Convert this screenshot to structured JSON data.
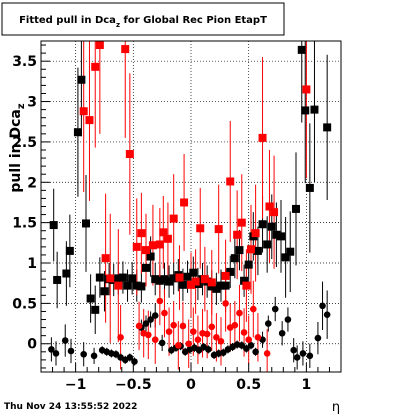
{
  "colors": {
    "series_black": "#000000",
    "series_red": "#ff0000",
    "background": "#ffffff"
  },
  "chart_data": {
    "type": "scatter",
    "title": "Fitted pull in Dca",
    "title_subscript": "z",
    "title_suffix": " for Global Rec Pion EtapT",
    "ylabel": "pull in Dca",
    "ylabel_subscript": "z",
    "xlabel": "η",
    "timestamp": "Thu Nov 24 13:55:52 2022",
    "xlim": [
      -1.3,
      1.3
    ],
    "ylim": [
      -0.35,
      3.75
    ],
    "x_ticks": [
      -1,
      -0.5,
      0,
      0.5,
      1
    ],
    "x_tick_labels": [
      "−1",
      "−0.5",
      "0",
      "0.5",
      "1"
    ],
    "y_ticks": [
      0,
      0.5,
      1,
      1.5,
      2,
      2.5,
      3,
      3.5
    ],
    "y_tick_labels": [
      "0",
      "0.5",
      "1",
      "1.5",
      "2",
      "2.5",
      "3",
      "3.5"
    ],
    "grid": true,
    "series": [
      {
        "color": "#000000",
        "marker": "square",
        "points": [
          {
            "x": -1.19,
            "y": 1.47,
            "err": 0.45
          },
          {
            "x": -1.16,
            "y": 0.79,
            "err": 0.35
          },
          {
            "x": -1.08,
            "y": 0.87,
            "err": 0.4
          },
          {
            "x": -1.05,
            "y": 1.15,
            "err": 0.45
          },
          {
            "x": -0.98,
            "y": 2.62,
            "err": 0.8
          },
          {
            "x": -0.95,
            "y": 3.27,
            "err": 0.7
          },
          {
            "x": -0.91,
            "y": 1.49,
            "err": 0.6
          },
          {
            "x": -0.87,
            "y": 0.56,
            "err": 0.3
          },
          {
            "x": -0.83,
            "y": 0.42,
            "err": 0.3
          },
          {
            "x": -0.79,
            "y": 0.82,
            "err": 0.25
          },
          {
            "x": -0.75,
            "y": 0.65,
            "err": 0.25
          },
          {
            "x": -0.71,
            "y": 0.8,
            "err": 0.2
          },
          {
            "x": -0.67,
            "y": 0.79,
            "err": 0.2
          },
          {
            "x": -0.63,
            "y": 0.81,
            "err": 0.2
          },
          {
            "x": -0.59,
            "y": 0.82,
            "err": 0.2
          },
          {
            "x": -0.55,
            "y": 0.72,
            "err": 0.2
          },
          {
            "x": -0.51,
            "y": 0.81,
            "err": 0.2
          },
          {
            "x": -0.47,
            "y": 0.72,
            "err": 0.2
          },
          {
            "x": -0.43,
            "y": 0.71,
            "err": 0.2
          },
          {
            "x": -0.39,
            "y": 0.94,
            "err": 0.2
          },
          {
            "x": -0.35,
            "y": 1.08,
            "err": 0.25
          },
          {
            "x": -0.31,
            "y": 0.8,
            "err": 0.2
          },
          {
            "x": -0.27,
            "y": 0.78,
            "err": 0.2
          },
          {
            "x": -0.23,
            "y": 0.8,
            "err": 0.2
          },
          {
            "x": -0.19,
            "y": 0.77,
            "err": 0.2
          },
          {
            "x": -0.15,
            "y": 0.81,
            "err": 0.2
          },
          {
            "x": -0.11,
            "y": 0.85,
            "err": 0.2
          },
          {
            "x": -0.07,
            "y": 0.73,
            "err": 0.2
          },
          {
            "x": -0.03,
            "y": 0.83,
            "err": 0.2
          },
          {
            "x": 0.02,
            "y": 0.88,
            "err": 0.2
          },
          {
            "x": 0.06,
            "y": 0.74,
            "err": 0.2
          },
          {
            "x": 0.1,
            "y": 0.8,
            "err": 0.2
          },
          {
            "x": 0.14,
            "y": 0.77,
            "err": 0.2
          },
          {
            "x": 0.18,
            "y": 0.71,
            "err": 0.2
          },
          {
            "x": 0.22,
            "y": 0.68,
            "err": 0.2
          },
          {
            "x": 0.26,
            "y": 0.72,
            "err": 0.2
          },
          {
            "x": 0.3,
            "y": 0.72,
            "err": 0.2
          },
          {
            "x": 0.34,
            "y": 0.89,
            "err": 0.2
          },
          {
            "x": 0.38,
            "y": 1.06,
            "err": 0.25
          },
          {
            "x": 0.42,
            "y": 1.16,
            "err": 0.25
          },
          {
            "x": 0.46,
            "y": 0.78,
            "err": 0.2
          },
          {
            "x": 0.5,
            "y": 0.98,
            "err": 0.25
          },
          {
            "x": 0.54,
            "y": 1.33,
            "err": 0.3
          },
          {
            "x": 0.58,
            "y": 1.15,
            "err": 0.3
          },
          {
            "x": 0.62,
            "y": 1.48,
            "err": 0.35
          },
          {
            "x": 0.66,
            "y": 1.23,
            "err": 0.35
          },
          {
            "x": 0.7,
            "y": 1.45,
            "err": 0.4
          },
          {
            "x": 0.74,
            "y": 1.35,
            "err": 0.4
          },
          {
            "x": 0.78,
            "y": 1.33,
            "err": 0.45
          },
          {
            "x": 0.82,
            "y": 1.07,
            "err": 0.5
          },
          {
            "x": 0.86,
            "y": 1.14,
            "err": 0.5
          },
          {
            "x": 0.91,
            "y": 1.67,
            "err": 0.7
          },
          {
            "x": 0.96,
            "y": 3.64,
            "err": 0.9
          },
          {
            "x": 0.99,
            "y": 2.89,
            "err": 0.9
          },
          {
            "x": 1.03,
            "y": 1.93,
            "err": 0.8
          },
          {
            "x": 1.07,
            "y": 2.9,
            "err": 0.9
          },
          {
            "x": 1.18,
            "y": 2.68,
            "err": 0.9
          }
        ]
      },
      {
        "color": "#000000",
        "marker": "circle",
        "points": [
          {
            "x": -1.21,
            "y": -0.07,
            "err": 0.15
          },
          {
            "x": -1.17,
            "y": -0.12,
            "err": 0.15
          },
          {
            "x": -1.09,
            "y": 0.04,
            "err": 0.2
          },
          {
            "x": -1.04,
            "y": -0.09,
            "err": 0.15
          },
          {
            "x": -0.93,
            "y": -0.13,
            "err": 0.15
          },
          {
            "x": -0.84,
            "y": -0.15,
            "err": 0.1
          },
          {
            "x": -0.77,
            "y": -0.08,
            "err": 0.05
          },
          {
            "x": -0.73,
            "y": -0.1,
            "err": 0.05
          },
          {
            "x": -0.69,
            "y": -0.12,
            "err": 0.05
          },
          {
            "x": -0.65,
            "y": -0.13,
            "err": 0.05
          },
          {
            "x": -0.61,
            "y": -0.17,
            "err": 0.05
          },
          {
            "x": -0.57,
            "y": -0.2,
            "err": 0.05
          },
          {
            "x": -0.53,
            "y": -0.17,
            "err": 0.05
          },
          {
            "x": -0.49,
            "y": -0.22,
            "err": 0.05
          },
          {
            "x": -0.43,
            "y": 0.2,
            "err": 0.1
          },
          {
            "x": -0.39,
            "y": 0.25,
            "err": 0.1
          },
          {
            "x": -0.35,
            "y": 0.3,
            "err": 0.1
          },
          {
            "x": -0.31,
            "y": 0.35,
            "err": 0.15
          },
          {
            "x": -0.25,
            "y": 0.01,
            "err": 0.1
          },
          {
            "x": -0.17,
            "y": -0.08,
            "err": 0.05
          },
          {
            "x": -0.13,
            "y": -0.05,
            "err": 0.05
          },
          {
            "x": -0.09,
            "y": -0.03,
            "err": 0.05
          },
          {
            "x": -0.05,
            "y": -0.1,
            "err": 0.05
          },
          {
            "x": -0.01,
            "y": -0.07,
            "err": 0.05
          },
          {
            "x": 0.03,
            "y": -0.05,
            "err": 0.05
          },
          {
            "x": 0.07,
            "y": -0.08,
            "err": 0.05
          },
          {
            "x": 0.11,
            "y": -0.04,
            "err": 0.05
          },
          {
            "x": 0.15,
            "y": -0.07,
            "err": 0.05
          },
          {
            "x": 0.2,
            "y": -0.14,
            "err": 0.05
          },
          {
            "x": 0.24,
            "y": -0.12,
            "err": 0.05
          },
          {
            "x": 0.28,
            "y": -0.11,
            "err": 0.05
          },
          {
            "x": 0.32,
            "y": -0.07,
            "err": 0.05
          },
          {
            "x": 0.36,
            "y": -0.04,
            "err": 0.05
          },
          {
            "x": 0.4,
            "y": -0.01,
            "err": 0.05
          },
          {
            "x": 0.44,
            "y": -0.02,
            "err": 0.05
          },
          {
            "x": 0.48,
            "y": -0.06,
            "err": 0.05
          },
          {
            "x": 0.52,
            "y": -0.02,
            "err": 0.05
          },
          {
            "x": 0.56,
            "y": -0.1,
            "err": 0.05
          },
          {
            "x": 0.62,
            "y": 0.05,
            "err": 0.1
          },
          {
            "x": 0.67,
            "y": 0.25,
            "err": 0.1
          },
          {
            "x": 0.73,
            "y": 0.43,
            "err": 0.15
          },
          {
            "x": 0.79,
            "y": 0.13,
            "err": 0.15
          },
          {
            "x": 0.84,
            "y": 0.3,
            "err": 0.15
          },
          {
            "x": 0.89,
            "y": -0.08,
            "err": 0.15
          },
          {
            "x": 0.92,
            "y": -0.17,
            "err": 0.15
          },
          {
            "x": 0.97,
            "y": -0.12,
            "err": 0.15
          },
          {
            "x": 1.03,
            "y": -0.15,
            "err": 0.15
          },
          {
            "x": 1.1,
            "y": 0.07,
            "err": 0.2
          },
          {
            "x": 1.14,
            "y": 0.47,
            "err": 0.3
          },
          {
            "x": 1.18,
            "y": 0.36,
            "err": 0.3
          }
        ]
      },
      {
        "color": "#ff0000",
        "marker": "square",
        "points": [
          {
            "x": -0.93,
            "y": 2.88,
            "err": 1.0
          },
          {
            "x": -0.88,
            "y": 2.77,
            "err": 1.0
          },
          {
            "x": -0.83,
            "y": 3.43,
            "err": 1.0
          },
          {
            "x": -0.79,
            "y": 3.7,
            "err": 1.1
          },
          {
            "x": -0.74,
            "y": 1.06,
            "err": 0.8
          },
          {
            "x": -0.7,
            "y": 0.81,
            "err": 0.8
          },
          {
            "x": -0.63,
            "y": 0.72,
            "err": 0.7
          },
          {
            "x": -0.57,
            "y": 3.65,
            "err": 1.1
          },
          {
            "x": -0.53,
            "y": 2.35,
            "err": 1.0
          },
          {
            "x": -0.47,
            "y": 1.2,
            "err": 0.6
          },
          {
            "x": -0.43,
            "y": 1.37,
            "err": 0.5
          },
          {
            "x": -0.39,
            "y": 1.16,
            "err": 0.45
          },
          {
            "x": -0.33,
            "y": 1.22,
            "err": 0.5
          },
          {
            "x": -0.27,
            "y": 1.23,
            "err": 0.45
          },
          {
            "x": -0.24,
            "y": 1.38,
            "err": 0.45
          },
          {
            "x": -0.2,
            "y": 1.3,
            "err": 0.45
          },
          {
            "x": -0.15,
            "y": 1.55,
            "err": 0.55
          },
          {
            "x": -0.1,
            "y": 0.82,
            "err": 0.4
          },
          {
            "x": -0.06,
            "y": 1.75,
            "err": 0.6
          },
          {
            "x": 0.0,
            "y": 0.73,
            "err": 0.4
          },
          {
            "x": 0.04,
            "y": 0.77,
            "err": 0.4
          },
          {
            "x": 0.08,
            "y": 1.43,
            "err": 0.5
          },
          {
            "x": 0.12,
            "y": 0.8,
            "err": 0.4
          },
          {
            "x": 0.18,
            "y": 0.76,
            "err": 0.4
          },
          {
            "x": 0.24,
            "y": 1.42,
            "err": 0.55
          },
          {
            "x": 0.3,
            "y": 0.84,
            "err": 0.45
          },
          {
            "x": 0.34,
            "y": 2.01,
            "err": 0.75
          },
          {
            "x": 0.4,
            "y": 1.35,
            "err": 0.55
          },
          {
            "x": 0.44,
            "y": 1.5,
            "err": 0.6
          },
          {
            "x": 0.48,
            "y": 0.72,
            "err": 0.45
          },
          {
            "x": 0.52,
            "y": 1.17,
            "err": 0.55
          },
          {
            "x": 0.56,
            "y": 1.37,
            "err": 0.6
          },
          {
            "x": 0.62,
            "y": 2.55,
            "err": 1.0
          },
          {
            "x": 0.68,
            "y": 1.7,
            "err": 0.7
          },
          {
            "x": 0.72,
            "y": 1.63,
            "err": 0.7
          },
          {
            "x": 1.0,
            "y": 3.15,
            "err": 1.1
          }
        ]
      },
      {
        "color": "#ff0000",
        "marker": "circle",
        "points": [
          {
            "x": -0.61,
            "y": 0.08,
            "err": 0.4
          },
          {
            "x": -0.45,
            "y": 0.22,
            "err": 0.3
          },
          {
            "x": -0.41,
            "y": 0.13,
            "err": 0.3
          },
          {
            "x": -0.37,
            "y": 0.11,
            "err": 0.3
          },
          {
            "x": -0.31,
            "y": 0.05,
            "err": 0.3
          },
          {
            "x": -0.27,
            "y": 0.53,
            "err": 0.3
          },
          {
            "x": -0.23,
            "y": 0.38,
            "err": 0.3
          },
          {
            "x": -0.19,
            "y": 0.15,
            "err": 0.3
          },
          {
            "x": -0.15,
            "y": 0.23,
            "err": 0.3
          },
          {
            "x": -0.11,
            "y": -0.02,
            "err": 0.3
          },
          {
            "x": -0.07,
            "y": 0.22,
            "err": 0.3
          },
          {
            "x": -0.02,
            "y": 0.0,
            "err": 0.3
          },
          {
            "x": 0.02,
            "y": 0.15,
            "err": 0.3
          },
          {
            "x": 0.06,
            "y": 0.05,
            "err": 0.3
          },
          {
            "x": 0.1,
            "y": 0.13,
            "err": 0.3
          },
          {
            "x": 0.14,
            "y": 0.12,
            "err": 0.3
          },
          {
            "x": 0.18,
            "y": 0.21,
            "err": 0.3
          },
          {
            "x": 0.22,
            "y": 0.08,
            "err": 0.3
          },
          {
            "x": 0.26,
            "y": 0.03,
            "err": 0.3
          },
          {
            "x": 0.3,
            "y": 0.5,
            "err": 0.35
          },
          {
            "x": 0.34,
            "y": 0.2,
            "err": 0.3
          },
          {
            "x": 0.38,
            "y": 0.23,
            "err": 0.3
          },
          {
            "x": 0.42,
            "y": 0.38,
            "err": 0.35
          },
          {
            "x": 0.46,
            "y": 0.14,
            "err": 0.3
          },
          {
            "x": 0.5,
            "y": 0.05,
            "err": 0.3
          },
          {
            "x": 0.54,
            "y": 0.43,
            "err": 0.35
          },
          {
            "x": 0.58,
            "y": 0.08,
            "err": 0.3
          },
          {
            "x": 0.66,
            "y": -0.12,
            "err": 0.3
          }
        ]
      }
    ]
  }
}
